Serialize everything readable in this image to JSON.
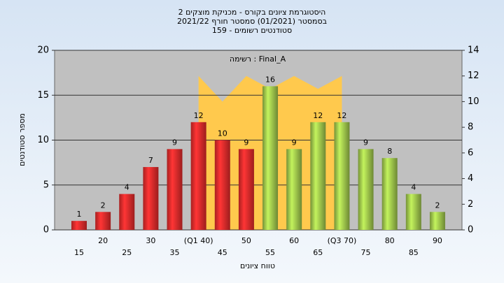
{
  "chart_data": {
    "type": "bar",
    "title": "היסטוגרמת ציונים בקורס - מכניקת מוצקים 2",
    "subtitle": "בסמסטר  (01/2021)  סמסטר חורף 2021/22",
    "subtitle2": "סטודנטים רשומים - 159",
    "annotation": "רשימה : Final_A",
    "x_label": "טווח ציונים",
    "y_label": "מספר סטודנטים",
    "categories": [
      "15",
      "20",
      "25",
      "30",
      "35",
      "(Q1 40)",
      "45",
      "50",
      "55",
      "60",
      "65",
      "(Q3 70)",
      "75",
      "80",
      "85",
      "90"
    ],
    "values": [
      1,
      2,
      4,
      7,
      9,
      12,
      10,
      9,
      16,
      9,
      12,
      12,
      9,
      8,
      4,
      2
    ],
    "colors": [
      "#e02a2a",
      "#e02a2a",
      "#e02a2a",
      "#e02a2a",
      "#e02a2a",
      "#e02a2a",
      "#e02a2a",
      "#e02a2a",
      "#9cc24a",
      "#9cc24a",
      "#9cc24a",
      "#9cc24a",
      "#9cc24a",
      "#9cc24a",
      "#9cc24a",
      "#9cc24a"
    ],
    "band": {
      "axis": "y2",
      "color": "#ffc94d",
      "values": [
        null,
        null,
        null,
        null,
        null,
        12,
        10,
        12,
        11,
        12,
        11,
        12,
        null,
        null,
        null,
        null
      ]
    },
    "ylim": [
      0,
      20
    ],
    "yticks": [
      0,
      5,
      10,
      15,
      20
    ],
    "y2lim": [
      0,
      14
    ],
    "y2ticks": [
      0,
      2,
      4,
      6,
      8,
      10,
      12,
      14
    ],
    "grid": true
  }
}
